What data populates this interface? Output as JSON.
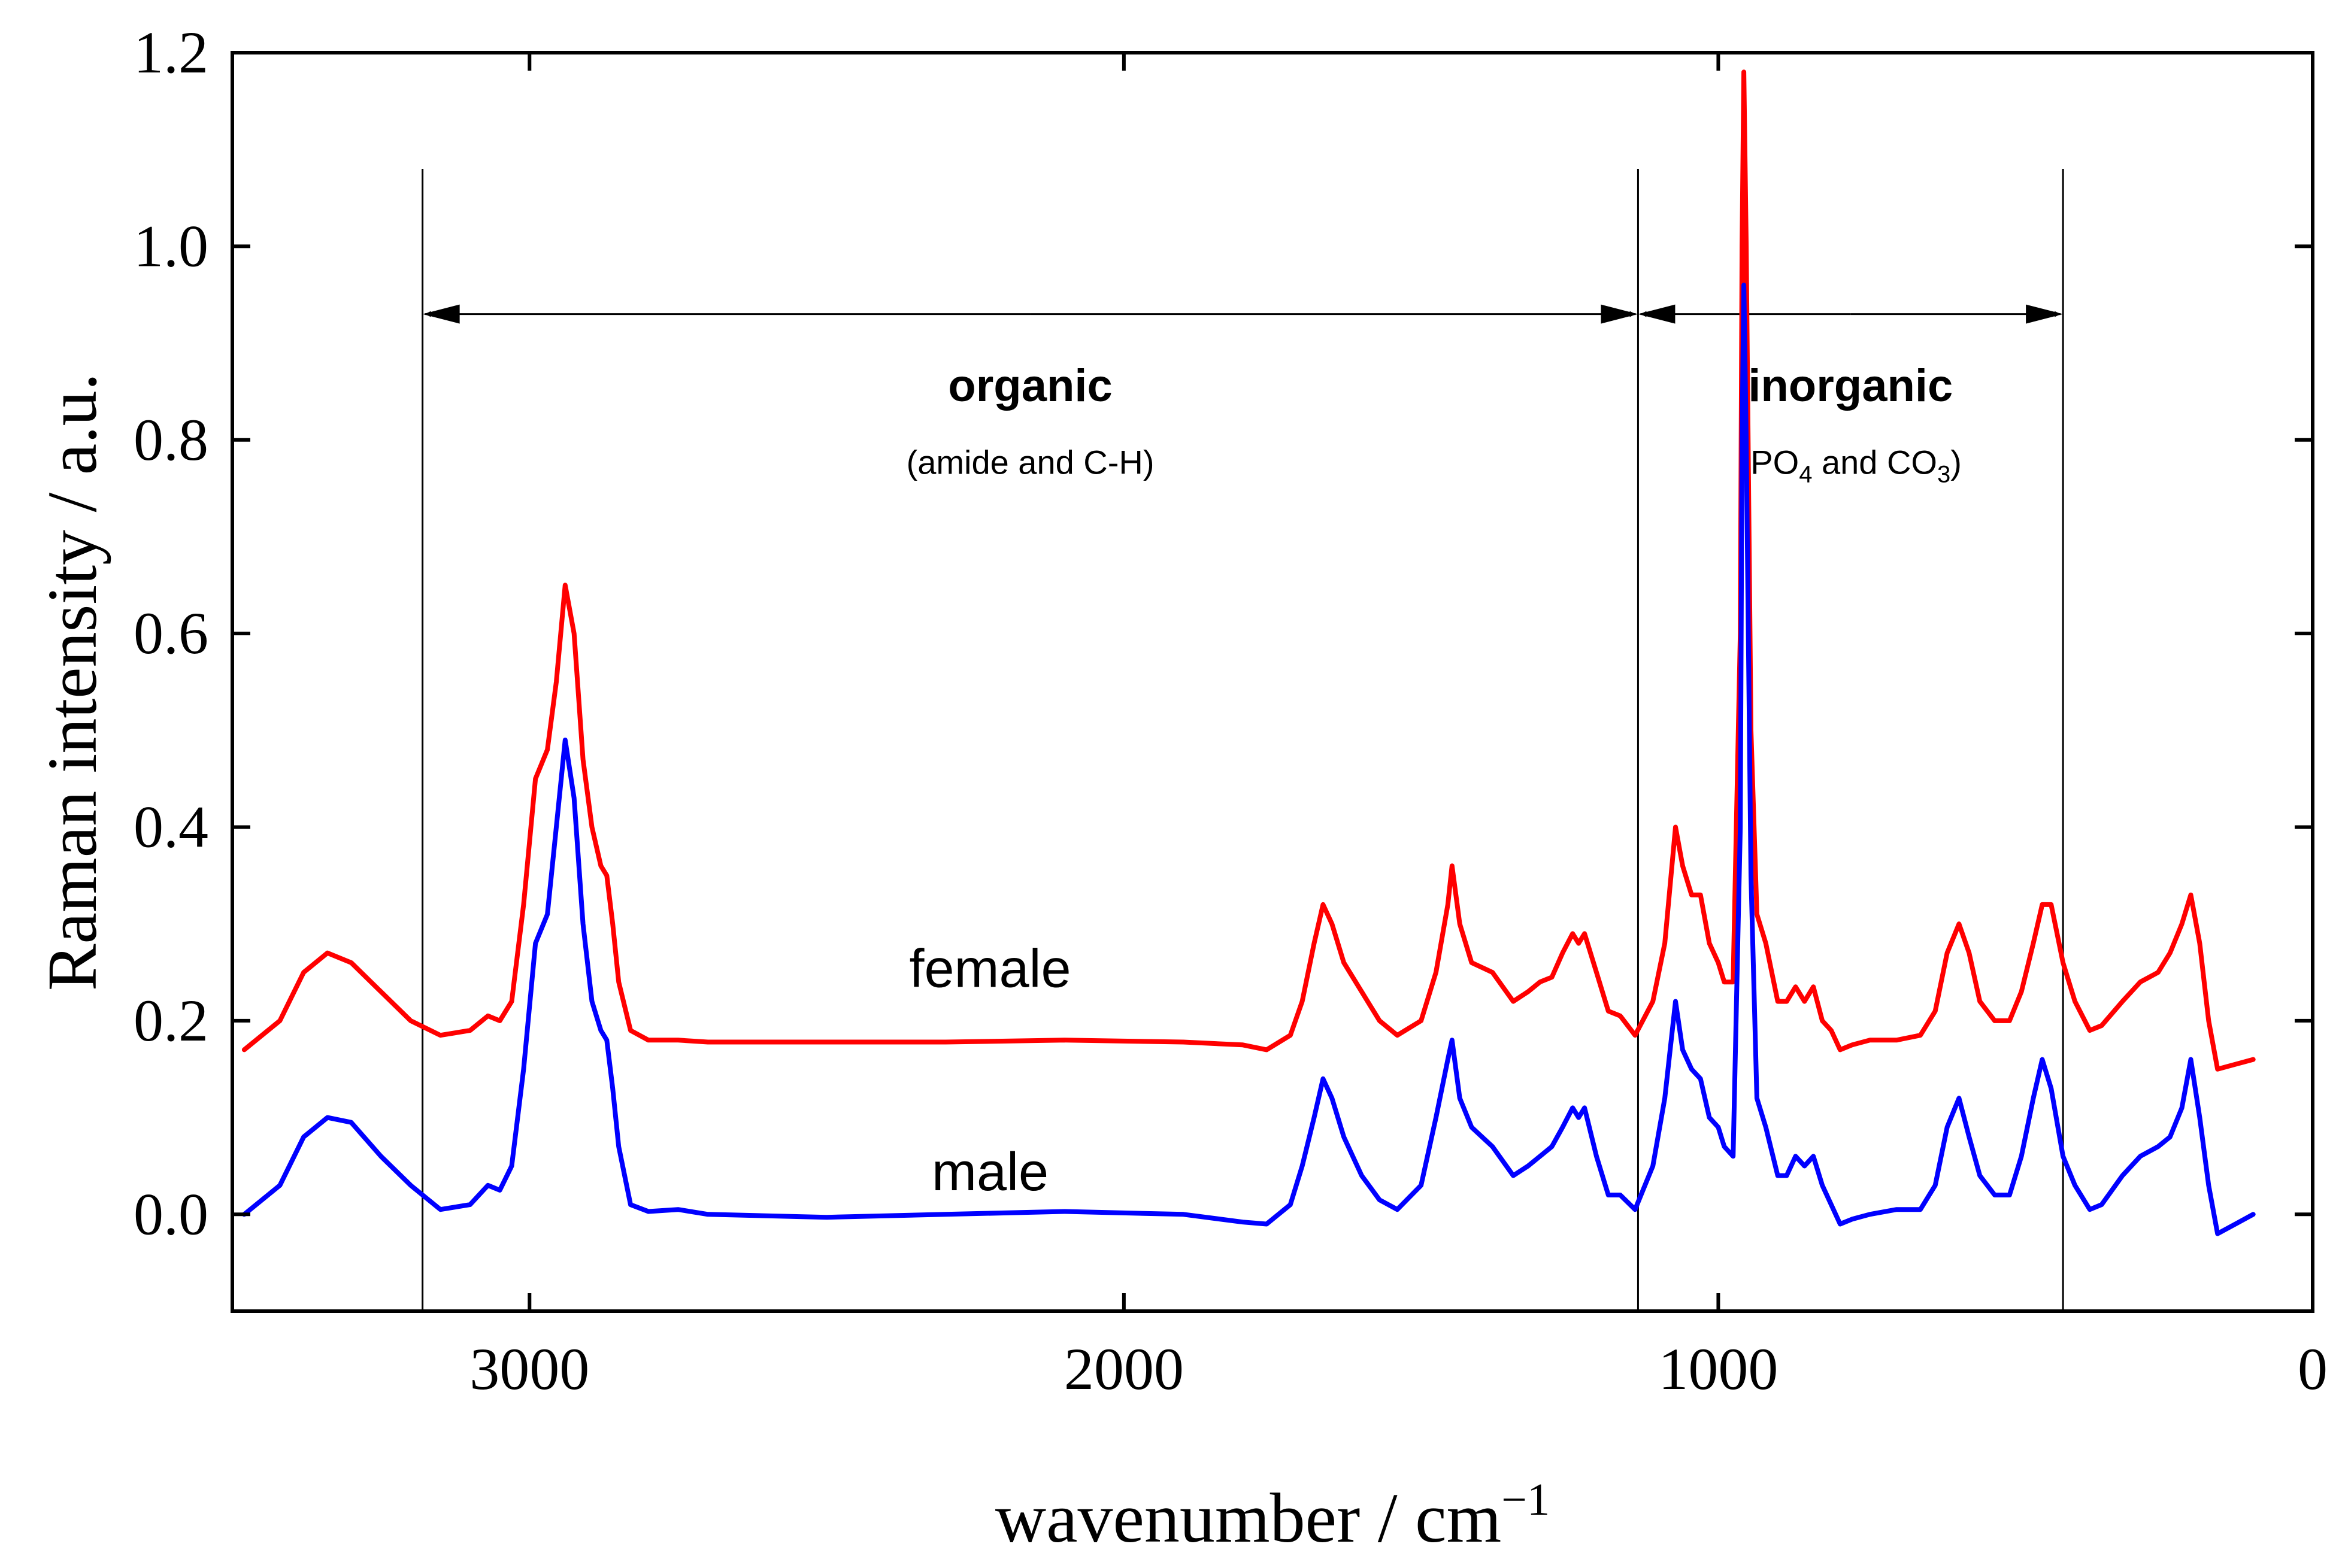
{
  "chart_data": {
    "type": "line",
    "xlabel": "wavenumber / cm",
    "xlabel_sup": "−1",
    "ylabel": "Raman intensity / a.u.",
    "xlim": [
      3500,
      0
    ],
    "ylim": [
      -0.1,
      1.2
    ],
    "x_ticks": [
      {
        "value": 3000,
        "label": "3000"
      },
      {
        "value": 2000,
        "label": "2000"
      },
      {
        "value": 1000,
        "label": "1000"
      },
      {
        "value": 0,
        "label": "0"
      }
    ],
    "y_ticks": [
      {
        "value": 0.0,
        "label": "0.0"
      },
      {
        "value": 0.2,
        "label": "0.2"
      },
      {
        "value": 0.4,
        "label": "0.4"
      },
      {
        "value": 0.6,
        "label": "0.6"
      },
      {
        "value": 0.8,
        "label": "0.8"
      },
      {
        "value": 1.0,
        "label": "1.0"
      },
      {
        "value": 1.2,
        "label": "1.2"
      }
    ],
    "regions": [
      {
        "name": "organic",
        "label": "organic",
        "sublabel": "(amide and C-H)",
        "from": 3180,
        "to": 1135
      },
      {
        "name": "inorganic",
        "label": "inorganic",
        "sublabel_parts": [
          "(PO",
          "4",
          " and CO",
          "3",
          ")"
        ],
        "from": 1135,
        "to": 420
      }
    ],
    "boundaries": [
      3180,
      1135,
      420
    ],
    "series": [
      {
        "name": "female",
        "label": "female",
        "color": "#ff0000",
        "points": [
          [
            3480,
            0.17
          ],
          [
            3420,
            0.2
          ],
          [
            3380,
            0.25
          ],
          [
            3340,
            0.27
          ],
          [
            3300,
            0.26
          ],
          [
            3250,
            0.23
          ],
          [
            3200,
            0.2
          ],
          [
            3150,
            0.185
          ],
          [
            3100,
            0.19
          ],
          [
            3070,
            0.205
          ],
          [
            3050,
            0.2
          ],
          [
            3030,
            0.22
          ],
          [
            3010,
            0.32
          ],
          [
            2990,
            0.45
          ],
          [
            2970,
            0.48
          ],
          [
            2955,
            0.55
          ],
          [
            2940,
            0.65
          ],
          [
            2925,
            0.6
          ],
          [
            2910,
            0.47
          ],
          [
            2895,
            0.4
          ],
          [
            2880,
            0.36
          ],
          [
            2870,
            0.35
          ],
          [
            2860,
            0.3
          ],
          [
            2850,
            0.24
          ],
          [
            2830,
            0.19
          ],
          [
            2800,
            0.18
          ],
          [
            2750,
            0.18
          ],
          [
            2700,
            0.178
          ],
          [
            2500,
            0.178
          ],
          [
            2300,
            0.178
          ],
          [
            2100,
            0.18
          ],
          [
            1900,
            0.178
          ],
          [
            1800,
            0.175
          ],
          [
            1760,
            0.17
          ],
          [
            1720,
            0.185
          ],
          [
            1700,
            0.22
          ],
          [
            1680,
            0.28
          ],
          [
            1665,
            0.32
          ],
          [
            1650,
            0.3
          ],
          [
            1630,
            0.26
          ],
          [
            1600,
            0.23
          ],
          [
            1570,
            0.2
          ],
          [
            1540,
            0.185
          ],
          [
            1500,
            0.2
          ],
          [
            1475,
            0.25
          ],
          [
            1455,
            0.32
          ],
          [
            1448,
            0.36
          ],
          [
            1435,
            0.3
          ],
          [
            1415,
            0.26
          ],
          [
            1380,
            0.25
          ],
          [
            1345,
            0.22
          ],
          [
            1320,
            0.23
          ],
          [
            1300,
            0.24
          ],
          [
            1280,
            0.245
          ],
          [
            1262,
            0.27
          ],
          [
            1245,
            0.29
          ],
          [
            1235,
            0.28
          ],
          [
            1225,
            0.29
          ],
          [
            1205,
            0.25
          ],
          [
            1185,
            0.21
          ],
          [
            1165,
            0.205
          ],
          [
            1140,
            0.185
          ],
          [
            1110,
            0.22
          ],
          [
            1090,
            0.28
          ],
          [
            1072,
            0.4
          ],
          [
            1060,
            0.36
          ],
          [
            1045,
            0.33
          ],
          [
            1030,
            0.33
          ],
          [
            1015,
            0.28
          ],
          [
            1000,
            0.26
          ],
          [
            990,
            0.24
          ],
          [
            975,
            0.24
          ],
          [
            963,
            0.6
          ],
          [
            960,
            1.0
          ],
          [
            957,
            1.18
          ],
          [
            953,
            1.0
          ],
          [
            945,
            0.5
          ],
          [
            935,
            0.31
          ],
          [
            920,
            0.28
          ],
          [
            900,
            0.22
          ],
          [
            885,
            0.22
          ],
          [
            870,
            0.235
          ],
          [
            855,
            0.22
          ],
          [
            840,
            0.235
          ],
          [
            825,
            0.2
          ],
          [
            810,
            0.19
          ],
          [
            795,
            0.17
          ],
          [
            775,
            0.175
          ],
          [
            745,
            0.18
          ],
          [
            700,
            0.18
          ],
          [
            660,
            0.185
          ],
          [
            635,
            0.21
          ],
          [
            615,
            0.27
          ],
          [
            595,
            0.3
          ],
          [
            578,
            0.27
          ],
          [
            560,
            0.22
          ],
          [
            535,
            0.2
          ],
          [
            510,
            0.2
          ],
          [
            490,
            0.23
          ],
          [
            470,
            0.28
          ],
          [
            455,
            0.32
          ],
          [
            440,
            0.32
          ],
          [
            420,
            0.26
          ],
          [
            400,
            0.22
          ],
          [
            375,
            0.19
          ],
          [
            355,
            0.195
          ],
          [
            320,
            0.22
          ],
          [
            290,
            0.24
          ],
          [
            260,
            0.25
          ],
          [
            240,
            0.27
          ],
          [
            220,
            0.3
          ],
          [
            205,
            0.33
          ],
          [
            190,
            0.28
          ],
          [
            175,
            0.2
          ],
          [
            160,
            0.15
          ],
          [
            130,
            0.155
          ],
          [
            100,
            0.16
          ]
        ]
      },
      {
        "name": "male",
        "label": "male",
        "color": "#0000ff",
        "points": [
          [
            3480,
            0.0
          ],
          [
            3420,
            0.03
          ],
          [
            3380,
            0.08
          ],
          [
            3340,
            0.1
          ],
          [
            3300,
            0.095
          ],
          [
            3250,
            0.06
          ],
          [
            3200,
            0.03
          ],
          [
            3150,
            0.005
          ],
          [
            3100,
            0.01
          ],
          [
            3070,
            0.03
          ],
          [
            3050,
            0.025
          ],
          [
            3030,
            0.05
          ],
          [
            3010,
            0.15
          ],
          [
            2990,
            0.28
          ],
          [
            2970,
            0.31
          ],
          [
            2955,
            0.4
          ],
          [
            2940,
            0.49
          ],
          [
            2925,
            0.43
          ],
          [
            2910,
            0.3
          ],
          [
            2895,
            0.22
          ],
          [
            2880,
            0.19
          ],
          [
            2870,
            0.18
          ],
          [
            2860,
            0.13
          ],
          [
            2850,
            0.07
          ],
          [
            2830,
            0.01
          ],
          [
            2800,
            0.003
          ],
          [
            2750,
            0.005
          ],
          [
            2700,
            0.0
          ],
          [
            2500,
            -0.003
          ],
          [
            2300,
            0.0
          ],
          [
            2100,
            0.003
          ],
          [
            1900,
            0.0
          ],
          [
            1800,
            -0.008
          ],
          [
            1760,
            -0.01
          ],
          [
            1720,
            0.01
          ],
          [
            1700,
            0.05
          ],
          [
            1680,
            0.1
          ],
          [
            1665,
            0.14
          ],
          [
            1650,
            0.12
          ],
          [
            1630,
            0.08
          ],
          [
            1600,
            0.04
          ],
          [
            1570,
            0.015
          ],
          [
            1540,
            0.005
          ],
          [
            1500,
            0.03
          ],
          [
            1475,
            0.1
          ],
          [
            1455,
            0.16
          ],
          [
            1448,
            0.18
          ],
          [
            1435,
            0.12
          ],
          [
            1415,
            0.09
          ],
          [
            1380,
            0.07
          ],
          [
            1345,
            0.04
          ],
          [
            1320,
            0.05
          ],
          [
            1300,
            0.06
          ],
          [
            1280,
            0.07
          ],
          [
            1262,
            0.09
          ],
          [
            1245,
            0.11
          ],
          [
            1235,
            0.1
          ],
          [
            1225,
            0.11
          ],
          [
            1205,
            0.06
          ],
          [
            1185,
            0.02
          ],
          [
            1165,
            0.02
          ],
          [
            1140,
            0.005
          ],
          [
            1110,
            0.05
          ],
          [
            1090,
            0.12
          ],
          [
            1072,
            0.22
          ],
          [
            1060,
            0.17
          ],
          [
            1045,
            0.15
          ],
          [
            1030,
            0.14
          ],
          [
            1015,
            0.1
          ],
          [
            1000,
            0.09
          ],
          [
            990,
            0.07
          ],
          [
            975,
            0.06
          ],
          [
            963,
            0.4
          ],
          [
            960,
            0.8
          ],
          [
            957,
            0.96
          ],
          [
            953,
            0.8
          ],
          [
            945,
            0.35
          ],
          [
            935,
            0.12
          ],
          [
            920,
            0.09
          ],
          [
            900,
            0.04
          ],
          [
            885,
            0.04
          ],
          [
            870,
            0.06
          ],
          [
            855,
            0.05
          ],
          [
            840,
            0.06
          ],
          [
            825,
            0.03
          ],
          [
            810,
            0.01
          ],
          [
            795,
            -0.01
          ],
          [
            775,
            -0.005
          ],
          [
            745,
            0.0
          ],
          [
            700,
            0.005
          ],
          [
            660,
            0.005
          ],
          [
            635,
            0.03
          ],
          [
            615,
            0.09
          ],
          [
            595,
            0.12
          ],
          [
            578,
            0.08
          ],
          [
            560,
            0.04
          ],
          [
            535,
            0.02
          ],
          [
            510,
            0.02
          ],
          [
            490,
            0.06
          ],
          [
            470,
            0.12
          ],
          [
            455,
            0.16
          ],
          [
            440,
            0.13
          ],
          [
            420,
            0.06
          ],
          [
            400,
            0.03
          ],
          [
            375,
            0.005
          ],
          [
            355,
            0.01
          ],
          [
            320,
            0.04
          ],
          [
            290,
            0.06
          ],
          [
            260,
            0.07
          ],
          [
            240,
            0.08
          ],
          [
            220,
            0.11
          ],
          [
            205,
            0.16
          ],
          [
            190,
            0.1
          ],
          [
            175,
            0.03
          ],
          [
            160,
            -0.02
          ],
          [
            130,
            -0.01
          ],
          [
            100,
            0.0
          ]
        ]
      }
    ]
  }
}
